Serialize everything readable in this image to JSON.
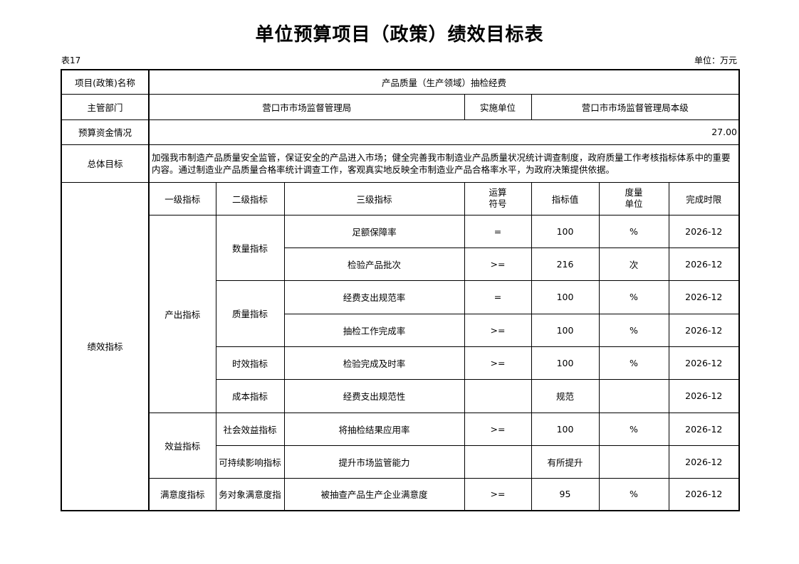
{
  "title": "单位预算项目（政策）绩效目标表",
  "table_no": "表17",
  "unit": "单位：万元",
  "header": {
    "project_label": "项目(政策)名称",
    "project_name": "产品质量（生产领域）抽检经费",
    "dept_label": "主管部门",
    "dept": "营口市市场监督管理局",
    "impl_label": "实施单位",
    "impl": "营口市市场监督管理局本级",
    "budget_label": "预算资金情况",
    "budget": "27.00",
    "goal_label": "总体目标",
    "goal": "加强我市制造产品质量安全监管，保证安全的产品进入市场；健全完善我市制造业产品质量状况统计调查制度，政府质量工作考核指标体系中的重要内容。通过制造业产品质量合格率统计调查工作，客观真实地反映全市制造业产品合格率水平，为政府决策提供依据。"
  },
  "perf_label": "绩效指标",
  "columns": [
    "一级指标",
    "二级指标",
    "三级指标",
    "运算\n符号",
    "指标值",
    "度量\n单位",
    "完成时限"
  ],
  "level1": [
    "产出指标",
    "效益指标",
    "满意度指标"
  ],
  "level2": [
    "数量指标",
    "质量指标",
    "时效指标",
    "成本指标",
    "社会效益指标",
    "可持续影响指标",
    "务对象满意度指"
  ],
  "rows": [
    {
      "name": "足额保障率",
      "op": "=",
      "value": "100",
      "unit": "%",
      "deadline": "2026-12"
    },
    {
      "name": "检验产品批次",
      "op": ">=",
      "value": "216",
      "unit": "次",
      "deadline": "2026-12"
    },
    {
      "name": "经费支出规范率",
      "op": "=",
      "value": "100",
      "unit": "%",
      "deadline": "2026-12"
    },
    {
      "name": "抽检工作完成率",
      "op": ">=",
      "value": "100",
      "unit": "%",
      "deadline": "2026-12"
    },
    {
      "name": "检验完成及时率",
      "op": ">=",
      "value": "100",
      "unit": "%",
      "deadline": "2026-12"
    },
    {
      "name": "经费支出规范性",
      "op": "",
      "value": "规范",
      "unit": "",
      "deadline": "2026-12"
    },
    {
      "name": "将抽检结果应用率",
      "op": ">=",
      "value": "100",
      "unit": "%",
      "deadline": "2026-12"
    },
    {
      "name": "提升市场监管能力",
      "op": "",
      "value": "有所提升",
      "unit": "",
      "deadline": "2026-12"
    },
    {
      "name": "被抽查产品生产企业满意度",
      "op": ">=",
      "value": "95",
      "unit": "%",
      "deadline": "2026-12"
    }
  ]
}
